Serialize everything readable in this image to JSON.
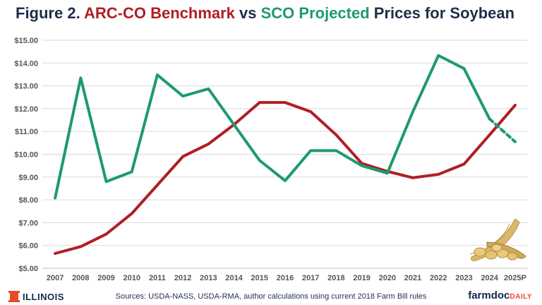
{
  "title": {
    "prefix": "Figure 2. ",
    "arc": "ARC-CO Benchmark",
    "vs": " vs ",
    "sco": "SCO Projected",
    "suffix": " Prices for Soybean"
  },
  "colors": {
    "arc": "#b01e24",
    "sco": "#1e9a6e",
    "title": "#1f2f4a"
  },
  "chart_data": {
    "type": "line",
    "x": [
      "2007",
      "2008",
      "2009",
      "2010",
      "2011",
      "2012",
      "2013",
      "2014",
      "2015",
      "2016",
      "2017",
      "2018",
      "2019",
      "2020",
      "2021",
      "2022",
      "2023",
      "2024",
      "2025P"
    ],
    "ylim": [
      5,
      15
    ],
    "yticks": [
      "$5.00",
      "$6.00",
      "$7.00",
      "$8.00",
      "$9.00",
      "$10.00",
      "$11.00",
      "$12.00",
      "$13.00",
      "$14.00",
      "$15.00"
    ],
    "grid": true,
    "series": [
      {
        "name": "ARC-CO Benchmark",
        "color": "#b01e24",
        "style": "solid",
        "values": [
          5.65,
          5.95,
          6.5,
          7.4,
          8.65,
          9.9,
          10.45,
          11.3,
          12.27,
          12.27,
          11.87,
          10.85,
          9.6,
          9.25,
          8.97,
          9.12,
          9.57,
          10.85,
          12.15
        ]
      },
      {
        "name": "SCO Projected",
        "color": "#1e9a6e",
        "style": "solid-last-dashed",
        "values": [
          8.08,
          13.35,
          8.8,
          9.23,
          13.48,
          12.55,
          12.87,
          11.3,
          9.73,
          8.84,
          10.16,
          10.16,
          9.5,
          9.17,
          11.87,
          14.33,
          13.76,
          11.55,
          10.55
        ]
      }
    ]
  },
  "footer": {
    "left_logo": "ILLINOIS",
    "sources": "Sources: USDA-NASS, USDA-RMA, author calculations using current 2018 Farm Bill rules",
    "right_logo_main": "farmdoc",
    "right_logo_sub": "DAILY"
  },
  "decoration_icon": "soybean-pods-icon"
}
